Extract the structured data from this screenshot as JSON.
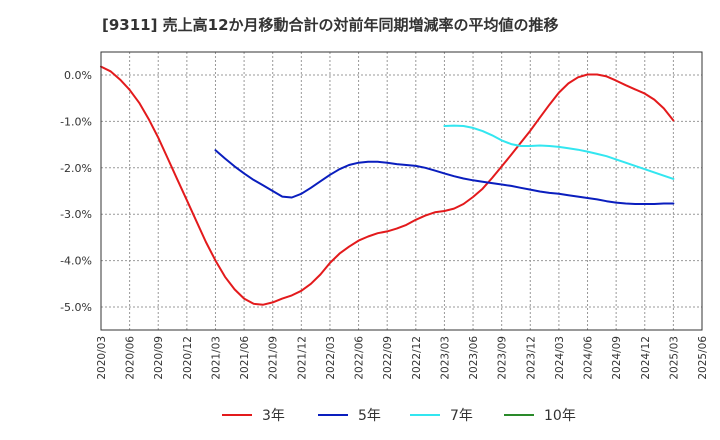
{
  "chart_data": {
    "type": "line",
    "title": "[9311]  売上高12か月移動合計の対前年同期増減率の平均値の推移",
    "x_ticks": [
      "2020/03",
      "2020/06",
      "2020/09",
      "2020/12",
      "2021/03",
      "2021/06",
      "2021/09",
      "2021/12",
      "2022/03",
      "2022/06",
      "2022/09",
      "2022/12",
      "2023/03",
      "2023/06",
      "2023/09",
      "2023/12",
      "2024/03",
      "2024/06",
      "2024/09",
      "2024/12",
      "2025/03",
      "2025/06"
    ],
    "y_ticks": [
      "0.0%",
      "-1.0%",
      "-2.0%",
      "-3.0%",
      "-4.0%",
      "-5.0%"
    ],
    "ylim": [
      -5.5,
      0.2
    ],
    "grid": true,
    "legend_position": "bottom",
    "series": [
      {
        "name": "3年",
        "color": "#e31a1c",
        "x": [
          "2020/03",
          "2020/04",
          "2020/05",
          "2020/06",
          "2020/07",
          "2020/08",
          "2020/09",
          "2020/10",
          "2020/11",
          "2020/12",
          "2021/01",
          "2021/02",
          "2021/03",
          "2021/04",
          "2021/05",
          "2021/06",
          "2021/07",
          "2021/08",
          "2021/09",
          "2021/10",
          "2021/11",
          "2021/12",
          "2022/01",
          "2022/02",
          "2022/03",
          "2022/04",
          "2022/05",
          "2022/06",
          "2022/07",
          "2022/08",
          "2022/09",
          "2022/10",
          "2022/11",
          "2022/12",
          "2023/01",
          "2023/02",
          "2023/03",
          "2023/04",
          "2023/05",
          "2023/06",
          "2023/07",
          "2023/08",
          "2023/09",
          "2023/10",
          "2023/11",
          "2023/12",
          "2024/01",
          "2024/02",
          "2024/03",
          "2024/04",
          "2024/05",
          "2024/06",
          "2024/07",
          "2024/08",
          "2024/09",
          "2024/10",
          "2024/11",
          "2024/12",
          "2025/01",
          "2025/02",
          "2025/03"
        ],
        "values": [
          0.18,
          0.08,
          -0.1,
          -0.32,
          -0.6,
          -0.95,
          -1.35,
          -1.8,
          -2.25,
          -2.7,
          -3.15,
          -3.6,
          -4.0,
          -4.35,
          -4.62,
          -4.82,
          -4.93,
          -4.95,
          -4.9,
          -4.82,
          -4.75,
          -4.65,
          -4.5,
          -4.3,
          -4.05,
          -3.85,
          -3.7,
          -3.57,
          -3.48,
          -3.41,
          -3.37,
          -3.31,
          -3.23,
          -3.12,
          -3.03,
          -2.96,
          -2.93,
          -2.88,
          -2.78,
          -2.63,
          -2.45,
          -2.22,
          -1.97,
          -1.72,
          -1.46,
          -1.2,
          -0.92,
          -0.64,
          -0.38,
          -0.18,
          -0.05,
          0.01,
          0.01,
          -0.03,
          -0.12,
          -0.22,
          -0.31,
          -0.4,
          -0.53,
          -0.72,
          -0.98
        ]
      },
      {
        "name": "5年",
        "color": "#0a1ebe",
        "x": [
          "2021/03",
          "2021/04",
          "2021/05",
          "2021/06",
          "2021/07",
          "2021/08",
          "2021/09",
          "2021/10",
          "2021/11",
          "2021/12",
          "2022/01",
          "2022/02",
          "2022/03",
          "2022/04",
          "2022/05",
          "2022/06",
          "2022/07",
          "2022/08",
          "2022/09",
          "2022/10",
          "2022/11",
          "2022/12",
          "2023/01",
          "2023/02",
          "2023/03",
          "2023/04",
          "2023/05",
          "2023/06",
          "2023/07",
          "2023/08",
          "2023/09",
          "2023/10",
          "2023/11",
          "2023/12",
          "2024/01",
          "2024/02",
          "2024/03",
          "2024/04",
          "2024/05",
          "2024/06",
          "2024/07",
          "2024/08",
          "2024/09",
          "2024/10",
          "2024/11",
          "2024/12",
          "2025/01",
          "2025/02",
          "2025/03"
        ],
        "values": [
          -1.62,
          -1.8,
          -1.97,
          -2.12,
          -2.26,
          -2.38,
          -2.5,
          -2.62,
          -2.64,
          -2.56,
          -2.43,
          -2.29,
          -2.15,
          -2.03,
          -1.94,
          -1.89,
          -1.87,
          -1.87,
          -1.89,
          -1.92,
          -1.94,
          -1.96,
          -2.0,
          -2.06,
          -2.12,
          -2.18,
          -2.23,
          -2.27,
          -2.3,
          -2.33,
          -2.36,
          -2.39,
          -2.43,
          -2.47,
          -2.51,
          -2.54,
          -2.56,
          -2.59,
          -2.62,
          -2.65,
          -2.68,
          -2.72,
          -2.75,
          -2.77,
          -2.78,
          -2.78,
          -2.78,
          -2.77,
          -2.77
        ]
      },
      {
        "name": "7年",
        "color": "#33e6f0",
        "x": [
          "2023/03",
          "2023/04",
          "2023/05",
          "2023/06",
          "2023/07",
          "2023/08",
          "2023/09",
          "2023/10",
          "2023/11",
          "2023/12",
          "2024/01",
          "2024/02",
          "2024/03",
          "2024/04",
          "2024/05",
          "2024/06",
          "2024/07",
          "2024/08",
          "2024/09",
          "2024/10",
          "2024/11",
          "2024/12",
          "2025/01",
          "2025/02",
          "2025/03"
        ],
        "values": [
          -1.1,
          -1.09,
          -1.1,
          -1.14,
          -1.21,
          -1.3,
          -1.41,
          -1.49,
          -1.53,
          -1.53,
          -1.52,
          -1.53,
          -1.55,
          -1.58,
          -1.61,
          -1.65,
          -1.7,
          -1.75,
          -1.82,
          -1.89,
          -1.96,
          -2.03,
          -2.1,
          -2.17,
          -2.24
        ]
      },
      {
        "name": "10年",
        "color": "#2a8a2a",
        "x": [],
        "values": []
      }
    ]
  }
}
